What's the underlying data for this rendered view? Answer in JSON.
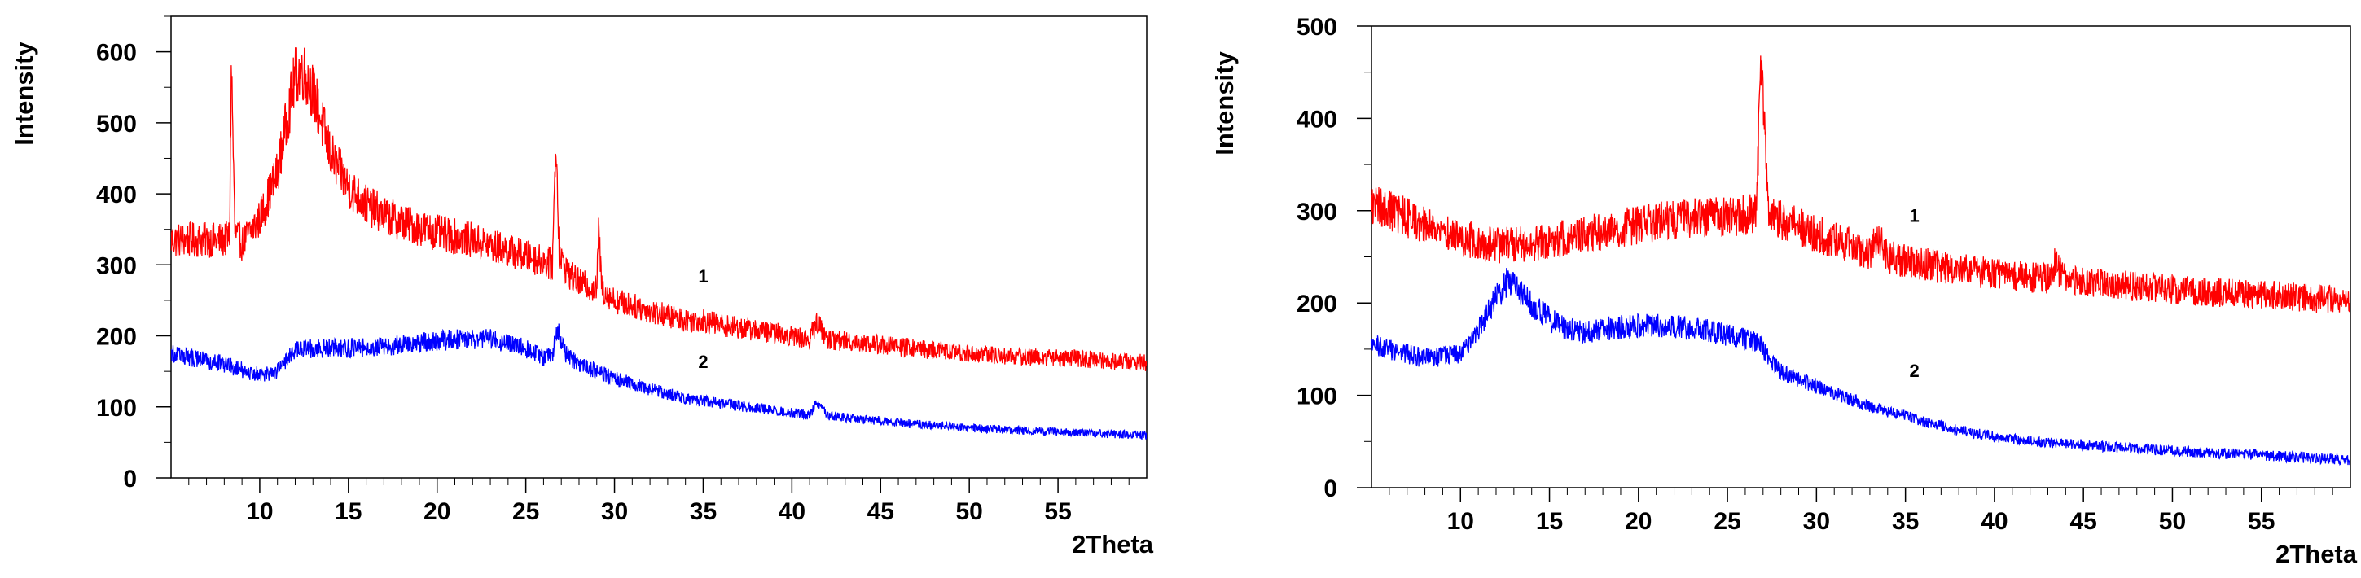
{
  "chart_data": [
    {
      "type": "line",
      "title": "",
      "xlabel": "2Theta",
      "ylabel": "Intensity",
      "xlim": [
        5,
        60
      ],
      "ylim": [
        0,
        650
      ],
      "x_ticks": [
        10,
        15,
        20,
        25,
        30,
        35,
        40,
        45,
        50,
        55
      ],
      "y_ticks": [
        0,
        100,
        200,
        300,
        400,
        500,
        600
      ],
      "grid": false,
      "legend": "none",
      "series": [
        {
          "name": "1",
          "color": "#ff0000",
          "label_at": [
            35,
            275
          ],
          "x": [
            5,
            6,
            7,
            8,
            8.3,
            8.4,
            8.6,
            9,
            10,
            11,
            11.5,
            12,
            12.4,
            13,
            13.5,
            14,
            15,
            16,
            17,
            18,
            20,
            22,
            24,
            26,
            26.5,
            26.7,
            26.9,
            27.5,
            28,
            29,
            29.1,
            29.3,
            30,
            32,
            34,
            35,
            36,
            38,
            40,
            41,
            41.4,
            42,
            44,
            46,
            48,
            50,
            52,
            54,
            56,
            58,
            60
          ],
          "y": [
            335,
            335,
            335,
            335,
            340,
            590,
            345,
            330,
            365,
            430,
            500,
            565,
            575,
            545,
            500,
            455,
            410,
            385,
            370,
            360,
            345,
            335,
            320,
            305,
            300,
            480,
            310,
            285,
            275,
            265,
            350,
            265,
            250,
            235,
            222,
            222,
            215,
            208,
            200,
            195,
            220,
            195,
            190,
            185,
            180,
            175,
            172,
            170,
            168,
            165,
            162
          ]
        },
        {
          "name": "2",
          "color": "#0000ff",
          "label_at": [
            35,
            155
          ],
          "x": [
            5,
            6,
            7,
            8,
            9,
            10,
            11,
            11.5,
            12,
            13,
            15,
            17,
            19,
            21,
            23,
            25,
            26,
            26.5,
            26.8,
            27.2,
            28,
            30,
            32,
            34,
            36,
            38,
            40,
            41,
            41.4,
            42,
            44,
            46,
            48,
            50,
            52,
            54,
            56,
            58,
            60
          ],
          "y": [
            175,
            170,
            165,
            160,
            152,
            145,
            150,
            165,
            180,
            182,
            183,
            185,
            190,
            195,
            195,
            182,
            170,
            175,
            210,
            175,
            160,
            140,
            125,
            112,
            105,
            98,
            92,
            88,
            108,
            88,
            82,
            78,
            74,
            70,
            68,
            66,
            64,
            62,
            60
          ]
        }
      ]
    },
    {
      "type": "line",
      "title": "",
      "xlabel": "2Theta",
      "ylabel": "Intensity",
      "xlim": [
        5,
        60
      ],
      "ylim": [
        0,
        500
      ],
      "x_ticks": [
        10,
        15,
        20,
        25,
        30,
        35,
        40,
        45,
        50,
        55
      ],
      "y_ticks": [
        0,
        100,
        200,
        300,
        400,
        500
      ],
      "grid": false,
      "legend": "none",
      "series": [
        {
          "name": "1",
          "color": "#ff0000",
          "label_at": [
            35.5,
            288
          ],
          "x": [
            5,
            6,
            8,
            10,
            12,
            14,
            16,
            18,
            20,
            22,
            24,
            26,
            26.6,
            26.9,
            27.3,
            28,
            30,
            32,
            33,
            33.4,
            34,
            36,
            38,
            40,
            42,
            43,
            43.4,
            44,
            46,
            48,
            50,
            52,
            54,
            56,
            58,
            60
          ],
          "y": [
            305,
            300,
            285,
            270,
            262,
            265,
            270,
            278,
            285,
            290,
            293,
            295,
            298,
            460,
            298,
            290,
            275,
            262,
            255,
            275,
            250,
            242,
            236,
            232,
            228,
            226,
            242,
            225,
            222,
            218,
            215,
            212,
            210,
            208,
            205,
            202
          ]
        },
        {
          "name": "2",
          "color": "#0000ff",
          "label_at": [
            35.5,
            120
          ],
          "x": [
            5,
            6,
            8,
            10,
            11,
            12,
            12.6,
            13,
            14,
            15,
            16,
            17,
            18,
            20,
            22,
            24,
            25,
            26,
            26.8,
            27.5,
            28,
            30,
            32,
            34,
            35,
            36,
            38,
            40,
            42,
            44,
            46,
            48,
            50,
            52,
            54,
            56,
            58,
            60
          ],
          "y": [
            155,
            150,
            140,
            145,
            170,
            205,
            222,
            220,
            200,
            182,
            172,
            168,
            172,
            175,
            175,
            170,
            165,
            160,
            158,
            135,
            125,
            110,
            95,
            82,
            78,
            72,
            62,
            55,
            50,
            48,
            45,
            42,
            40,
            38,
            36,
            34,
            32,
            30
          ]
        }
      ]
    }
  ]
}
